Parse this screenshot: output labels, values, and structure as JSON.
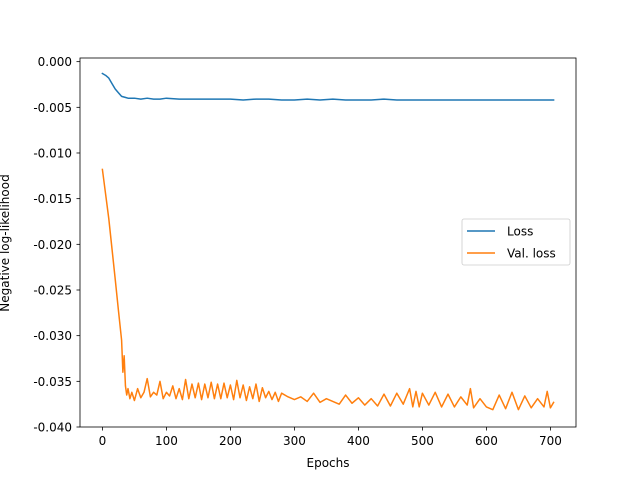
{
  "chart_data": {
    "type": "line",
    "title": "",
    "xlabel": "Epochs",
    "ylabel": "Negative log-likelihood",
    "xlim": [
      -35,
      740
    ],
    "ylim": [
      -0.04,
      0.0004
    ],
    "xticks": [
      0,
      100,
      200,
      300,
      400,
      500,
      600,
      700
    ],
    "xtick_labels": [
      "0",
      "100",
      "200",
      "300",
      "400",
      "500",
      "600",
      "700"
    ],
    "yticks": [
      0.0,
      -0.005,
      -0.01,
      -0.015,
      -0.02,
      -0.025,
      -0.03,
      -0.035,
      -0.04
    ],
    "ytick_labels": [
      "0.000",
      "-0.005",
      "-0.010",
      "-0.015",
      "-0.020",
      "-0.025",
      "-0.030",
      "-0.035",
      "-0.040"
    ],
    "grid": false,
    "legend_position": "center-right",
    "series": [
      {
        "name": "Loss",
        "color": "#1f77b4",
        "x": [
          0,
          5,
          10,
          15,
          20,
          25,
          30,
          35,
          40,
          50,
          60,
          70,
          80,
          90,
          100,
          120,
          140,
          160,
          180,
          200,
          220,
          240,
          260,
          280,
          300,
          320,
          340,
          360,
          380,
          400,
          420,
          440,
          460,
          480,
          500,
          520,
          540,
          560,
          580,
          600,
          620,
          640,
          660,
          680,
          700,
          705
        ],
        "y": [
          -0.0013,
          -0.0015,
          -0.0018,
          -0.0024,
          -0.003,
          -0.0034,
          -0.0038,
          -0.0039,
          -0.004,
          -0.004,
          -0.0041,
          -0.004,
          -0.0041,
          -0.0041,
          -0.004,
          -0.0041,
          -0.0041,
          -0.0041,
          -0.0041,
          -0.0041,
          -0.0042,
          -0.0041,
          -0.0041,
          -0.0042,
          -0.0042,
          -0.0041,
          -0.0042,
          -0.0041,
          -0.0042,
          -0.0042,
          -0.0042,
          -0.0041,
          -0.0042,
          -0.0042,
          -0.0042,
          -0.0042,
          -0.0042,
          -0.0042,
          -0.0042,
          -0.0042,
          -0.0042,
          -0.0042,
          -0.0042,
          -0.0042,
          -0.0042,
          -0.0042
        ]
      },
      {
        "name": "Val. loss",
        "color": "#ff7f0e",
        "x": [
          0,
          5,
          10,
          15,
          20,
          25,
          30,
          32,
          34,
          36,
          38,
          40,
          43,
          46,
          50,
          55,
          60,
          65,
          70,
          75,
          80,
          85,
          90,
          95,
          100,
          105,
          110,
          115,
          120,
          125,
          130,
          135,
          140,
          145,
          150,
          155,
          160,
          165,
          170,
          175,
          180,
          185,
          190,
          195,
          200,
          205,
          210,
          215,
          220,
          225,
          230,
          235,
          240,
          245,
          250,
          255,
          260,
          265,
          270,
          275,
          280,
          290,
          300,
          310,
          320,
          330,
          340,
          350,
          360,
          370,
          380,
          390,
          400,
          410,
          420,
          430,
          440,
          450,
          460,
          470,
          480,
          485,
          490,
          495,
          500,
          510,
          520,
          530,
          540,
          550,
          560,
          570,
          575,
          580,
          590,
          600,
          610,
          620,
          630,
          640,
          650,
          660,
          670,
          680,
          690,
          695,
          700,
          705
        ],
        "y": [
          -0.0118,
          -0.0145,
          -0.0172,
          -0.0205,
          -0.0238,
          -0.0272,
          -0.0305,
          -0.034,
          -0.0322,
          -0.0355,
          -0.0365,
          -0.0358,
          -0.0369,
          -0.0362,
          -0.0371,
          -0.0358,
          -0.0368,
          -0.0362,
          -0.0347,
          -0.0367,
          -0.0362,
          -0.0365,
          -0.035,
          -0.0369,
          -0.0362,
          -0.0366,
          -0.0355,
          -0.0369,
          -0.0358,
          -0.037,
          -0.0348,
          -0.0369,
          -0.0353,
          -0.0368,
          -0.0352,
          -0.037,
          -0.0353,
          -0.0368,
          -0.0351,
          -0.0369,
          -0.0353,
          -0.0369,
          -0.0352,
          -0.0368,
          -0.0354,
          -0.037,
          -0.0349,
          -0.0368,
          -0.0354,
          -0.0371,
          -0.0356,
          -0.0369,
          -0.0353,
          -0.0372,
          -0.0357,
          -0.0368,
          -0.0361,
          -0.037,
          -0.0362,
          -0.0372,
          -0.0363,
          -0.0367,
          -0.037,
          -0.0367,
          -0.0372,
          -0.0363,
          -0.0373,
          -0.0369,
          -0.0372,
          -0.0375,
          -0.0365,
          -0.0374,
          -0.0368,
          -0.0376,
          -0.0369,
          -0.0377,
          -0.0364,
          -0.0377,
          -0.0363,
          -0.0375,
          -0.0358,
          -0.0378,
          -0.0361,
          -0.0378,
          -0.0363,
          -0.0376,
          -0.0362,
          -0.0378,
          -0.0364,
          -0.0378,
          -0.0367,
          -0.0376,
          -0.0358,
          -0.0379,
          -0.0369,
          -0.0378,
          -0.0381,
          -0.0365,
          -0.038,
          -0.0362,
          -0.0381,
          -0.0366,
          -0.0379,
          -0.0369,
          -0.0378,
          -0.0361,
          -0.0379,
          -0.0373
        ]
      }
    ]
  }
}
